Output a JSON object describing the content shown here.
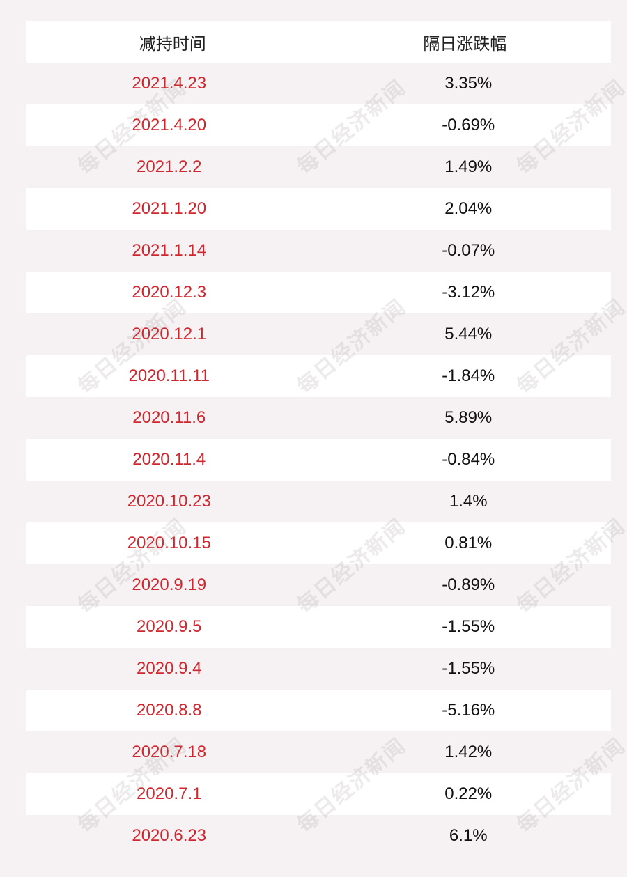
{
  "header": {
    "col_date": "减持时间",
    "col_change": "隔日涨跌幅"
  },
  "rows": [
    {
      "date": "2021.4.23",
      "change": "3.35%"
    },
    {
      "date": "2021.4.20",
      "change": "-0.69%"
    },
    {
      "date": "2021.2.2",
      "change": "1.49%"
    },
    {
      "date": "2021.1.20",
      "change": "2.04%"
    },
    {
      "date": "2021.1.14",
      "change": "-0.07%"
    },
    {
      "date": "2020.12.3",
      "change": "-3.12%"
    },
    {
      "date": "2020.12.1",
      "change": "5.44%"
    },
    {
      "date": "2020.11.11",
      "change": "-1.84%"
    },
    {
      "date": "2020.11.6",
      "change": "5.89%"
    },
    {
      "date": "2020.11.4",
      "change": "-0.84%"
    },
    {
      "date": "2020.10.23",
      "change": "1.4%"
    },
    {
      "date": "2020.10.15",
      "change": "0.81%"
    },
    {
      "date": "2020.9.19",
      "change": "-0.89%"
    },
    {
      "date": "2020.9.5",
      "change": "-1.55%"
    },
    {
      "date": "2020.9.4",
      "change": "-1.55%"
    },
    {
      "date": "2020.8.8",
      "change": "-5.16%"
    },
    {
      "date": "2020.7.18",
      "change": "1.42%"
    },
    {
      "date": "2020.7.1",
      "change": "0.22%"
    },
    {
      "date": "2020.6.23",
      "change": "6.1%"
    }
  ],
  "watermark": "每日经济新闻",
  "colors": {
    "date_text": "#d0262e",
    "change_text": "#111111",
    "row_white": "#ffffff",
    "row_shade": "#f6f2f3"
  }
}
